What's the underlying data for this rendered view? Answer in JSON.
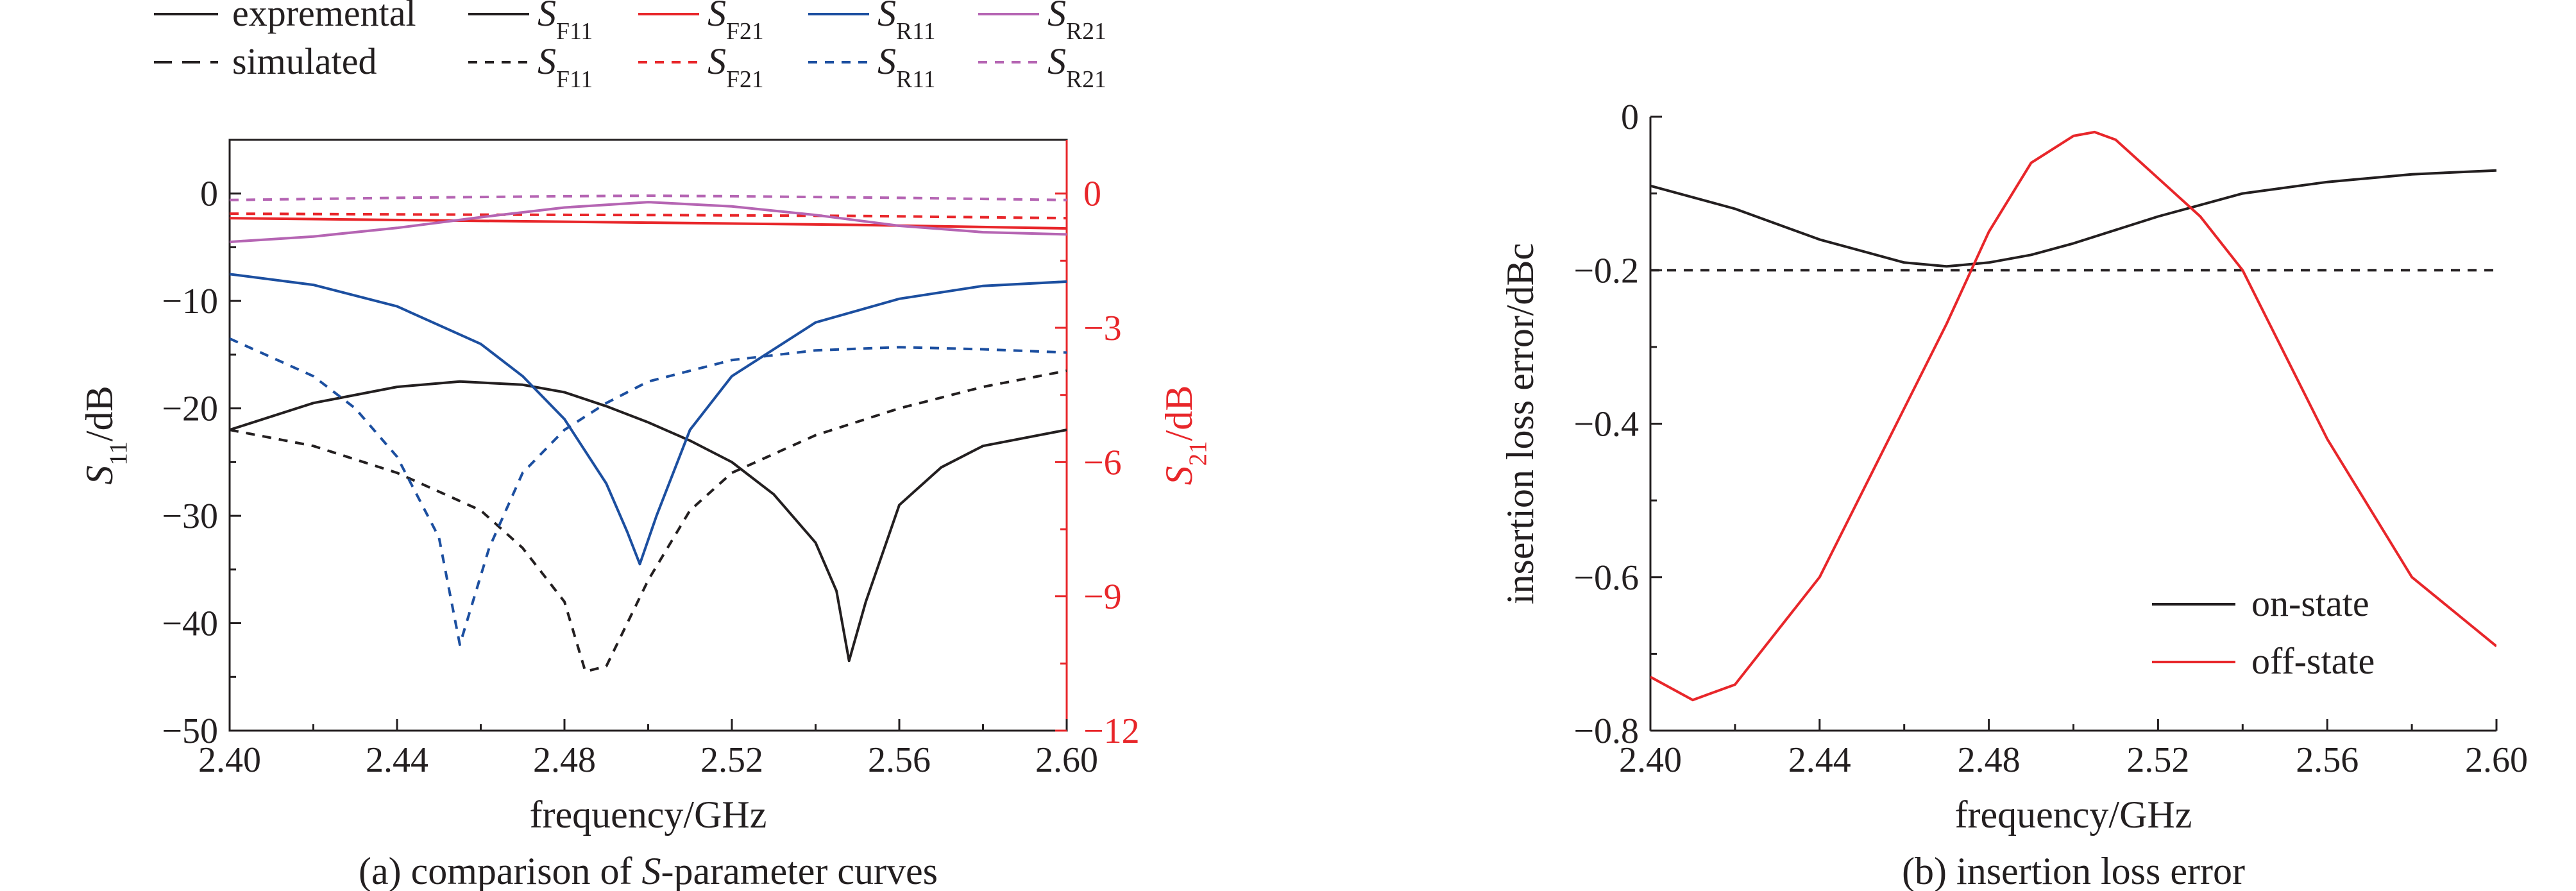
{
  "chart_data": [
    {
      "type": "line",
      "caption": "(a) comparison of S-parameter curves",
      "xlabel": "frequency/GHz",
      "ylabel_left": "S11/dB",
      "ylabel_right": "S21/dB",
      "xlim": [
        2.4,
        2.6
      ],
      "ylim_left": [
        -50,
        5
      ],
      "ylim_right": [
        -12,
        1.2
      ],
      "x_ticks": [
        "2.40",
        "2.44",
        "2.48",
        "2.52",
        "2.56",
        "2.60"
      ],
      "y_left_ticks": [
        "0",
        "−10",
        "−20",
        "−30",
        "−40",
        "−50"
      ],
      "y_right_ticks": [
        "0",
        "−3",
        "−6",
        "−9",
        "−12"
      ],
      "legend_left": [
        {
          "label": "expremental",
          "style": "solid"
        },
        {
          "label": "simulated",
          "style": "dashed"
        }
      ],
      "legend_series": [
        {
          "label": "SF11",
          "color": "#231f20"
        },
        {
          "label": "SF21",
          "color": "#e8262a"
        },
        {
          "label": "SR11",
          "color": "#1c4fa0"
        },
        {
          "label": "SR21",
          "color": "#b565b3"
        }
      ],
      "series": [
        {
          "name": "SF11",
          "kind": "experimental",
          "axis": "left",
          "color": "#231f20",
          "dash": "none",
          "x": [
            2.4,
            2.42,
            2.44,
            2.455,
            2.47,
            2.48,
            2.49,
            2.5,
            2.51,
            2.52,
            2.53,
            2.54,
            2.545,
            2.548,
            2.552,
            2.56,
            2.57,
            2.58,
            2.6
          ],
          "y": [
            -22,
            -19.5,
            -18,
            -17.5,
            -17.8,
            -18.5,
            -19.8,
            -21.3,
            -23,
            -25,
            -28,
            -32.5,
            -37,
            -43.5,
            -38,
            -29,
            -25.5,
            -23.5,
            -22
          ]
        },
        {
          "name": "SF11",
          "kind": "simulated",
          "axis": "left",
          "color": "#231f20",
          "dash": "14,12",
          "x": [
            2.4,
            2.42,
            2.44,
            2.46,
            2.47,
            2.48,
            2.485,
            2.49,
            2.5,
            2.51,
            2.52,
            2.54,
            2.56,
            2.58,
            2.6
          ],
          "y": [
            -22,
            -23.5,
            -26,
            -29.5,
            -33,
            -38,
            -44.5,
            -44,
            -36,
            -29.5,
            -26,
            -22.5,
            -20,
            -18,
            -16.5
          ]
        },
        {
          "name": "SF21",
          "kind": "experimental",
          "axis": "right",
          "color": "#e8262a",
          "dash": "none",
          "x": [
            2.4,
            2.45,
            2.5,
            2.55,
            2.6
          ],
          "y": [
            -0.55,
            -0.6,
            -0.65,
            -0.7,
            -0.78
          ]
        },
        {
          "name": "SF21",
          "kind": "simulated",
          "axis": "right",
          "color": "#e8262a",
          "dash": "14,12",
          "x": [
            2.4,
            2.45,
            2.5,
            2.55,
            2.6
          ],
          "y": [
            -0.45,
            -0.47,
            -0.48,
            -0.5,
            -0.55
          ]
        },
        {
          "name": "SR11",
          "kind": "experimental",
          "axis": "left",
          "color": "#1c4fa0",
          "dash": "none",
          "x": [
            2.4,
            2.42,
            2.44,
            2.46,
            2.47,
            2.48,
            2.49,
            2.495,
            2.498,
            2.502,
            2.51,
            2.52,
            2.54,
            2.56,
            2.58,
            2.6
          ],
          "y": [
            -7.5,
            -8.5,
            -10.5,
            -14,
            -17,
            -21,
            -27,
            -31.5,
            -34.5,
            -30,
            -22,
            -17,
            -12,
            -9.8,
            -8.6,
            -8.2
          ]
        },
        {
          "name": "SR11",
          "kind": "simulated",
          "axis": "left",
          "color": "#1c4fa0",
          "dash": "14,12",
          "x": [
            2.4,
            2.42,
            2.43,
            2.44,
            2.45,
            2.455,
            2.462,
            2.47,
            2.48,
            2.49,
            2.5,
            2.52,
            2.54,
            2.56,
            2.58,
            2.6
          ],
          "y": [
            -13.5,
            -17,
            -20,
            -24.5,
            -32,
            -42,
            -33,
            -26,
            -22,
            -19.5,
            -17.5,
            -15.5,
            -14.6,
            -14.3,
            -14.5,
            -14.8
          ]
        },
        {
          "name": "SR21",
          "kind": "experimental",
          "axis": "left",
          "color": "#b565b3",
          "dash": "none",
          "x": [
            2.4,
            2.42,
            2.44,
            2.46,
            2.48,
            2.5,
            2.52,
            2.54,
            2.56,
            2.58,
            2.6
          ],
          "y": [
            -4.5,
            -4,
            -3.2,
            -2.2,
            -1.3,
            -0.8,
            -1.2,
            -2,
            -3,
            -3.6,
            -3.8
          ]
        },
        {
          "name": "SR21",
          "kind": "simulated",
          "axis": "left",
          "color": "#b565b3",
          "dash": "14,12",
          "x": [
            2.4,
            2.44,
            2.48,
            2.5,
            2.52,
            2.56,
            2.6
          ],
          "y": [
            -0.6,
            -0.4,
            -0.25,
            -0.2,
            -0.25,
            -0.4,
            -0.6
          ]
        }
      ]
    },
    {
      "type": "line",
      "caption": "(b) insertion loss error",
      "xlabel": "frequency/GHz",
      "ylabel": "insertion loss error/dBc",
      "xlim": [
        2.4,
        2.6
      ],
      "ylim": [
        -0.8,
        0
      ],
      "x_ticks": [
        "2.40",
        "2.44",
        "2.48",
        "2.52",
        "2.56",
        "2.60"
      ],
      "y_ticks": [
        "0",
        "−0.2",
        "−0.4",
        "−0.6",
        "−0.8"
      ],
      "reference_line": {
        "y": -0.2,
        "style": "dashed"
      },
      "legend": [
        {
          "label": "on-state",
          "color": "#231f20"
        },
        {
          "label": "off-state",
          "color": "#e8262a"
        }
      ],
      "series": [
        {
          "name": "on-state",
          "color": "#231f20",
          "x": [
            2.4,
            2.42,
            2.44,
            2.46,
            2.47,
            2.48,
            2.49,
            2.5,
            2.52,
            2.54,
            2.56,
            2.58,
            2.6
          ],
          "y": [
            -0.09,
            -0.12,
            -0.16,
            -0.19,
            -0.195,
            -0.19,
            -0.18,
            -0.165,
            -0.13,
            -0.1,
            -0.085,
            -0.075,
            -0.07
          ]
        },
        {
          "name": "off-state",
          "color": "#e8262a",
          "x": [
            2.4,
            2.41,
            2.42,
            2.44,
            2.46,
            2.47,
            2.48,
            2.49,
            2.5,
            2.505,
            2.51,
            2.52,
            2.53,
            2.54,
            2.56,
            2.58,
            2.6
          ],
          "y": [
            -0.73,
            -0.76,
            -0.74,
            -0.6,
            -0.38,
            -0.27,
            -0.15,
            -0.06,
            -0.025,
            -0.02,
            -0.03,
            -0.08,
            -0.13,
            -0.2,
            -0.42,
            -0.6,
            -0.69
          ]
        }
      ]
    }
  ]
}
